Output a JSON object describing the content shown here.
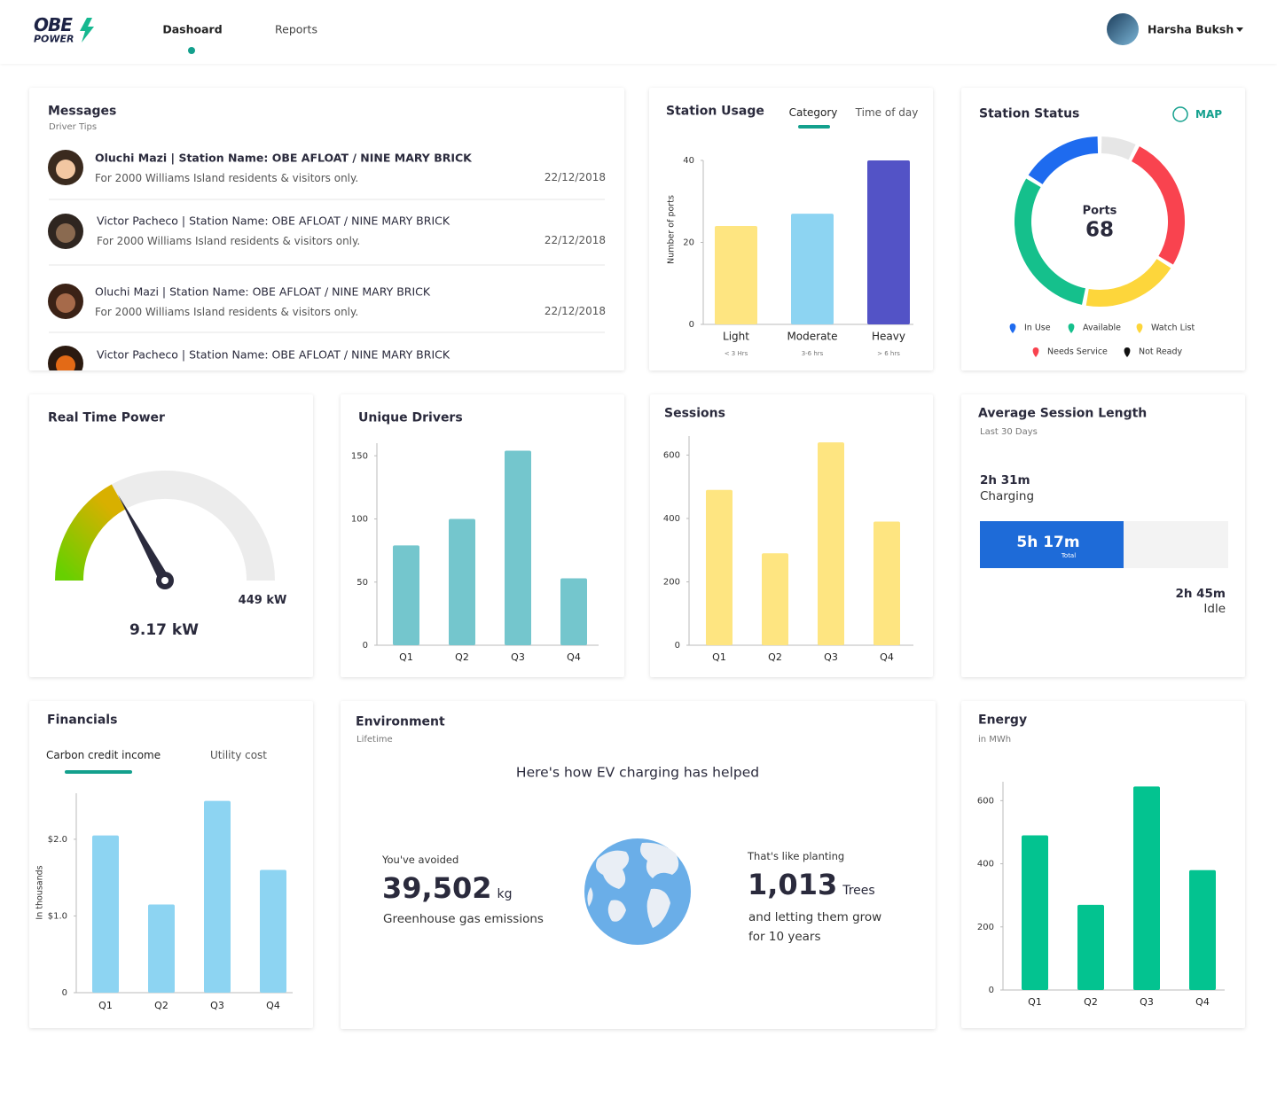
{
  "header": {
    "logo_top": "OBE",
    "logo_bottom": "POWER",
    "nav": [
      "Dashoard",
      "Reports"
    ],
    "user": "Harsha Buksh"
  },
  "messages": {
    "title": "Messages",
    "subtitle": "Driver Tips",
    "items": [
      {
        "sender": "Oluchi Mazi | Station Name:  OBE AFLOAT / NINE MARY BRICK",
        "text": "For 2000 Williams Island residents & visitors only.",
        "date": "22/12/2018"
      },
      {
        "sender": "Victor Pacheco | Station Name:  OBE AFLOAT / NINE MARY BRICK",
        "text": "For 2000 Williams Island residents & visitors only.",
        "date": "22/12/2018"
      },
      {
        "sender": "Oluchi Mazi | Station Name:  OBE AFLOAT / NINE MARY BRICK",
        "text": "For 2000 Williams Island residents & visitors only.",
        "date": "22/12/2018"
      },
      {
        "sender": "Victor Pacheco | Station Name:  OBE AFLOAT / NINE MARY BRICK"
      }
    ]
  },
  "station_usage": {
    "type": "bar",
    "title": "Station Usage",
    "tabs": [
      "Category",
      "Time of day"
    ],
    "y_label": "Number of ports",
    "categories": [
      "Light",
      "Moderate",
      "Heavy"
    ],
    "sublabels": [
      "< 3 Hrs",
      "3-6 hrs",
      "> 6 hrs"
    ],
    "values": [
      24,
      27,
      40
    ],
    "colors": [
      "#fee581",
      "#8dd4f2",
      "#5353c6"
    ],
    "ylim": [
      0,
      40
    ],
    "yticks": [
      0,
      20,
      40
    ]
  },
  "station_status": {
    "type": "donut",
    "title": "Station Status",
    "link": "MAP",
    "center_label": "Ports",
    "center_value": 68,
    "categories": [
      "In Use",
      "Available",
      "Watch List",
      "Needs Service",
      "Not Ready"
    ],
    "values": [
      11,
      21,
      13,
      18,
      5
    ],
    "colors": [
      "#1e6bef",
      "#15c08c",
      "#fdd63b",
      "#f9434f",
      "#e6e6e6"
    ],
    "legend_colors": [
      "#1e6bef",
      "#15c08c",
      "#fdd63b",
      "#f9434f",
      "#111111"
    ]
  },
  "real_time_power": {
    "title": "Real Time Power",
    "value_label": "9.17 kW",
    "max_label": "449 kW"
  },
  "unique_drivers": {
    "type": "bar",
    "title": "Unique Drivers",
    "categories": [
      "Q1",
      "Q2",
      "Q3",
      "Q4"
    ],
    "values": [
      79,
      100,
      154,
      53
    ],
    "color": "#74c6cd",
    "ylim": [
      0,
      160
    ],
    "yticks": [
      0,
      50,
      100,
      150
    ]
  },
  "sessions": {
    "type": "bar",
    "title": "Sessions",
    "categories": [
      "Q1",
      "Q2",
      "Q3",
      "Q4"
    ],
    "values": [
      490,
      290,
      640,
      390
    ],
    "color": "#fee581",
    "ylim": [
      0,
      660
    ],
    "yticks": [
      0,
      200,
      400,
      600
    ]
  },
  "avg_session": {
    "title": "Average Session Length",
    "subtitle": "Last 30 Days",
    "charging_time": "2h 31m",
    "charging_label": "Charging",
    "total_time": "5h 17m",
    "total_label": "Total",
    "idle_time": "2h 45m",
    "idle_label": "Idle"
  },
  "financials": {
    "type": "bar",
    "title": "Financials",
    "tabs": [
      "Carbon credit income",
      "Utility cost"
    ],
    "y_label": "In thousands",
    "categories": [
      "Q1",
      "Q2",
      "Q3",
      "Q4"
    ],
    "values": [
      2.05,
      1.15,
      2.5,
      1.6
    ],
    "color": "#8dd4f2",
    "ylim": [
      0,
      2.6
    ],
    "yticks": [
      0,
      {
        "value": 1,
        "label": "$1.0"
      },
      {
        "value": 2,
        "label": "$2.0"
      }
    ]
  },
  "environment": {
    "title": "Environment",
    "subtitle": "Lifetime",
    "headline": "Here's how EV charging has helped",
    "avoided_intro": "You've avoided",
    "avoided_value": "39,502",
    "avoided_unit": "kg",
    "avoided_label": "Greenhouse gas emissions",
    "trees_intro": "That's like planting",
    "trees_value": "1,013",
    "trees_unit": "Trees",
    "trees_label_1": "and letting them grow",
    "trees_label_2": "for 10 years"
  },
  "energy": {
    "type": "bar",
    "title": "Energy",
    "subtitle": "in MWh",
    "categories": [
      "Q1",
      "Q2",
      "Q3",
      "Q4"
    ],
    "values": [
      490,
      270,
      645,
      380
    ],
    "color": "#03c390",
    "ylim": [
      0,
      660
    ],
    "yticks": [
      0,
      200,
      400,
      600
    ]
  }
}
